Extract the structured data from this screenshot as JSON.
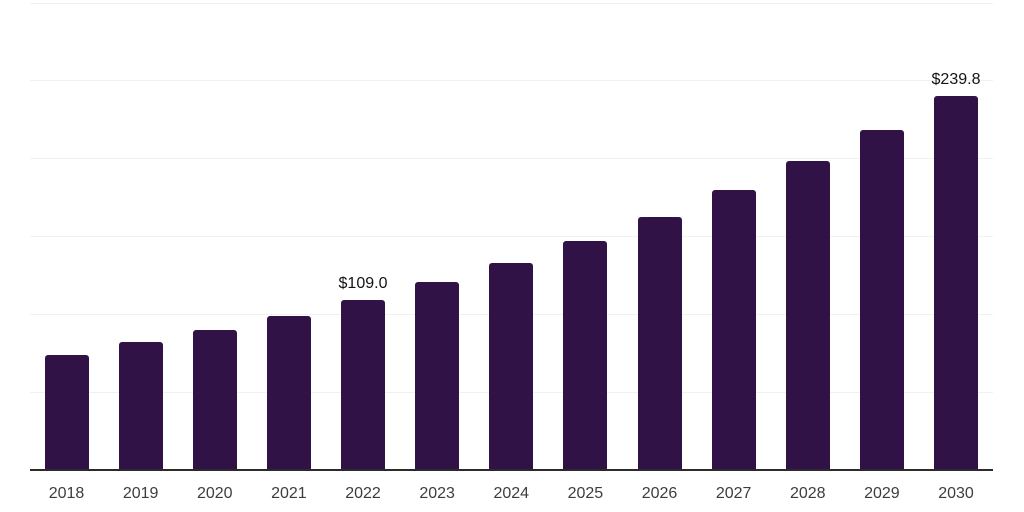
{
  "chart_data": {
    "type": "bar",
    "title": "",
    "xlabel": "",
    "ylabel": "",
    "categories": [
      "2018",
      "2019",
      "2020",
      "2021",
      "2022",
      "2023",
      "2024",
      "2025",
      "2026",
      "2027",
      "2028",
      "2029",
      "2030"
    ],
    "values": [
      73.8,
      82.1,
      89.8,
      99.1,
      109.0,
      120.6,
      132.8,
      147.0,
      162.4,
      179.7,
      198.3,
      218.2,
      239.8
    ],
    "data_labels": [
      {
        "category": "2022",
        "text": "$109.0"
      },
      {
        "category": "2030",
        "text": "$239.8"
      }
    ],
    "ylim": [
      0,
      300
    ],
    "gridline_step": 50,
    "grid": true,
    "y_tick_labels_shown": false,
    "legend": "none"
  },
  "colors": {
    "background": "#ffffff",
    "bar": "#301247",
    "grid": "#f0f0f0",
    "axis": "#2b2b2b",
    "tick_label": "#3d3d3d",
    "data_label": "#141414"
  }
}
